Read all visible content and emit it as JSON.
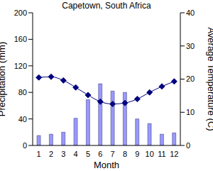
{
  "chart_data": {
    "type": "bar",
    "title": "Capetown, South Africa",
    "xlabel": "Month",
    "ylabel": "Precipitation (mm)",
    "y2label": "Average Temperature (C)",
    "categories": [
      "1",
      "2",
      "3",
      "4",
      "5",
      "6",
      "7",
      "8",
      "9",
      "10",
      "11",
      "12"
    ],
    "series": [
      {
        "type": "bar",
        "color": "#9999ff",
        "values": [
          15,
          17,
          20,
          41,
          69,
          93,
          82,
          80,
          40,
          33,
          17,
          19
        ]
      },
      {
        "type": "line",
        "axis": "y2",
        "color": "#000080",
        "marker": "diamond",
        "values": [
          20.5,
          20.7,
          19.6,
          17.5,
          15.2,
          13.2,
          12.5,
          12.8,
          14,
          16,
          17.8,
          19.3
        ]
      }
    ],
    "ylim": [
      0,
      200
    ],
    "yticks": [
      0,
      40,
      80,
      120,
      160,
      200
    ],
    "y2lim": [
      0,
      40
    ],
    "y2ticks": [
      0,
      10,
      20,
      30,
      40
    ],
    "grid": false
  }
}
